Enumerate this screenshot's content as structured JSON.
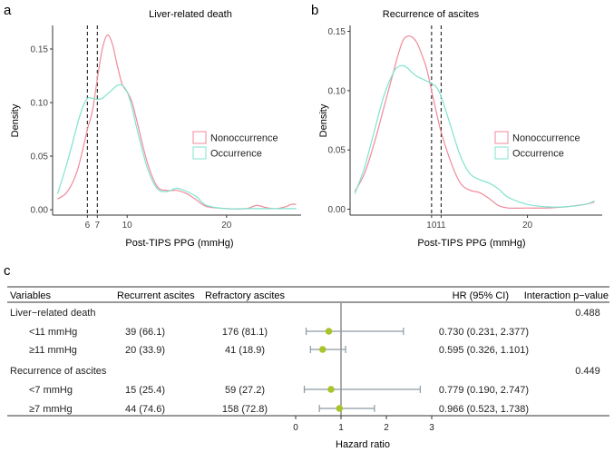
{
  "panels": {
    "a": "a",
    "b": "b",
    "c": "c"
  },
  "colors": {
    "nonoccurrence": "#f08a9b",
    "occurrence": "#7fe3cf",
    "marker": "#a8c42a",
    "ci_line": "#8a9aa5",
    "axis": "#333333"
  },
  "chart_data": [
    {
      "type": "line",
      "panel": "a",
      "title": "Liver-related death",
      "xlabel": "Post-TIPS PPG (mmHg)",
      "ylabel": "Density",
      "xlim": [
        2.5,
        27.5
      ],
      "ylim": [
        -0.005,
        0.172
      ],
      "x_ticks": [
        {
          "value": 6,
          "label": "6"
        },
        {
          "value": 7,
          "label": "7"
        },
        {
          "value": 10,
          "label": "10"
        },
        {
          "value": 20,
          "label": "20"
        }
      ],
      "y_ticks": [
        {
          "value": 0.0,
          "label": "0.00"
        },
        {
          "value": 0.05,
          "label": "0.05"
        },
        {
          "value": 0.1,
          "label": "0.10"
        },
        {
          "value": 0.15,
          "label": "0.15"
        }
      ],
      "vlines": [
        6,
        7
      ],
      "legend_position": "right",
      "series": [
        {
          "name": "Nonoccurrence",
          "color_key": "nonoccurrence",
          "x": [
            3,
            4,
            5,
            6,
            6.5,
            7,
            7.5,
            8,
            8.5,
            9,
            9.5,
            10,
            10.5,
            11,
            12,
            13,
            14,
            15,
            16,
            17,
            18,
            20,
            22,
            23,
            24,
            25,
            26,
            26.5,
            27
          ],
          "y": [
            0.01,
            0.017,
            0.037,
            0.075,
            0.092,
            0.122,
            0.15,
            0.163,
            0.155,
            0.135,
            0.117,
            0.11,
            0.1,
            0.082,
            0.045,
            0.022,
            0.018,
            0.018,
            0.015,
            0.009,
            0.003,
            0.001,
            0.001,
            0.004,
            0.002,
            0.001,
            0.003,
            0.005,
            0.005
          ]
        },
        {
          "name": "Occurrence",
          "color_key": "occurrence",
          "x": [
            3,
            4,
            5,
            5.5,
            6,
            6.5,
            7,
            7.5,
            8,
            8.5,
            9,
            9.5,
            10,
            10.5,
            11,
            12,
            13,
            14,
            15,
            16,
            17,
            18,
            20,
            22,
            24,
            26,
            27
          ],
          "y": [
            0.015,
            0.045,
            0.08,
            0.095,
            0.104,
            0.104,
            0.103,
            0.104,
            0.108,
            0.112,
            0.116,
            0.116,
            0.11,
            0.095,
            0.075,
            0.04,
            0.02,
            0.017,
            0.02,
            0.017,
            0.012,
            0.004,
            0.001,
            0.001,
            0.001,
            0.001,
            0.001
          ]
        }
      ]
    },
    {
      "type": "line",
      "panel": "b",
      "title": "Recurrence of ascites",
      "xlabel": "Post-TIPS PPG (mmHg)",
      "ylabel": "Density",
      "xlim": [
        1.5,
        27.8
      ],
      "ylim": [
        -0.005,
        0.155
      ],
      "x_ticks": [
        {
          "value": 10,
          "label": "10"
        },
        {
          "value": 11,
          "label": "11"
        },
        {
          "value": 20,
          "label": "20"
        }
      ],
      "y_ticks": [
        {
          "value": 0.0,
          "label": "0.00"
        },
        {
          "value": 0.05,
          "label": "0.05"
        },
        {
          "value": 0.1,
          "label": "0.10"
        },
        {
          "value": 0.15,
          "label": "0.15"
        }
      ],
      "vlines": [
        10,
        11
      ],
      "legend_position": "right",
      "series": [
        {
          "name": "Nonoccurrence",
          "color_key": "nonoccurrence",
          "x": [
            2,
            3,
            4,
            5,
            6,
            6.5,
            7,
            7.5,
            8,
            8.5,
            9,
            9.5,
            10,
            10.5,
            11,
            12,
            13,
            14,
            15,
            16,
            17,
            18,
            20,
            22,
            24,
            25,
            26,
            27
          ],
          "y": [
            0.015,
            0.03,
            0.055,
            0.085,
            0.115,
            0.13,
            0.142,
            0.146,
            0.145,
            0.14,
            0.13,
            0.118,
            0.1,
            0.082,
            0.065,
            0.04,
            0.022,
            0.016,
            0.014,
            0.009,
            0.003,
            0.001,
            0.001,
            0.001,
            0.002,
            0.003,
            0.004,
            0.006
          ]
        },
        {
          "name": "Occurrence",
          "color_key": "occurrence",
          "x": [
            2,
            3,
            4,
            5,
            6,
            6.5,
            7,
            7.5,
            8,
            8.5,
            9,
            9.5,
            10,
            10.5,
            11,
            12,
            13,
            14,
            15,
            16,
            17,
            18,
            20,
            22,
            24,
            26,
            27
          ],
          "y": [
            0.013,
            0.035,
            0.065,
            0.095,
            0.115,
            0.12,
            0.121,
            0.119,
            0.115,
            0.112,
            0.11,
            0.108,
            0.106,
            0.103,
            0.095,
            0.07,
            0.045,
            0.03,
            0.025,
            0.022,
            0.017,
            0.01,
            0.004,
            0.002,
            0.002,
            0.004,
            0.007
          ]
        }
      ]
    },
    {
      "type": "table",
      "panel": "c",
      "columns": [
        "Variables",
        "Recurrent ascites",
        "Refractory ascites",
        "HR (95% CI)",
        "Interaction p−value"
      ],
      "xlabel": "Hazard ratio",
      "xlim": [
        -0.2,
        3.2
      ],
      "x_ticks": [
        {
          "value": 0,
          "label": "0"
        },
        {
          "value": 1,
          "label": "1"
        },
        {
          "value": 2,
          "label": "2"
        },
        {
          "value": 3,
          "label": "3"
        }
      ],
      "reference_line": 1,
      "rows": [
        {
          "label": "Liver−related death",
          "header": true,
          "recurrent": "",
          "refractory": "",
          "hr_text": "",
          "p": "0.488"
        },
        {
          "label": "<11 mmHg",
          "header": false,
          "recurrent": "39 (66.1)",
          "refractory": "176 (81.1)",
          "hr_text": "0.730 (0.231, 2.377)",
          "p": "",
          "hr": 0.73,
          "lo": 0.231,
          "hi": 2.377
        },
        {
          "label": "≥11 mmHg",
          "header": false,
          "recurrent": "20 (33.9)",
          "refractory": "41 (18.9)",
          "hr_text": "0.595 (0.326, 1.101)",
          "p": "",
          "hr": 0.595,
          "lo": 0.326,
          "hi": 1.101
        },
        {
          "label": "Recurrence of ascites",
          "header": true,
          "recurrent": "",
          "refractory": "",
          "hr_text": "",
          "p": "0.449"
        },
        {
          "label": "<7 mmHg",
          "header": false,
          "recurrent": "15 (25.4)",
          "refractory": "59 (27.2)",
          "hr_text": "0.779 (0.190, 2.747)",
          "p": "",
          "hr": 0.779,
          "lo": 0.19,
          "hi": 2.747
        },
        {
          "label": "≥7 mmHg",
          "header": false,
          "recurrent": "44 (74.6)",
          "refractory": "158 (72.8)",
          "hr_text": "0.966 (0.523, 1.738)",
          "p": "",
          "hr": 0.966,
          "lo": 0.523,
          "hi": 1.738
        }
      ]
    }
  ]
}
